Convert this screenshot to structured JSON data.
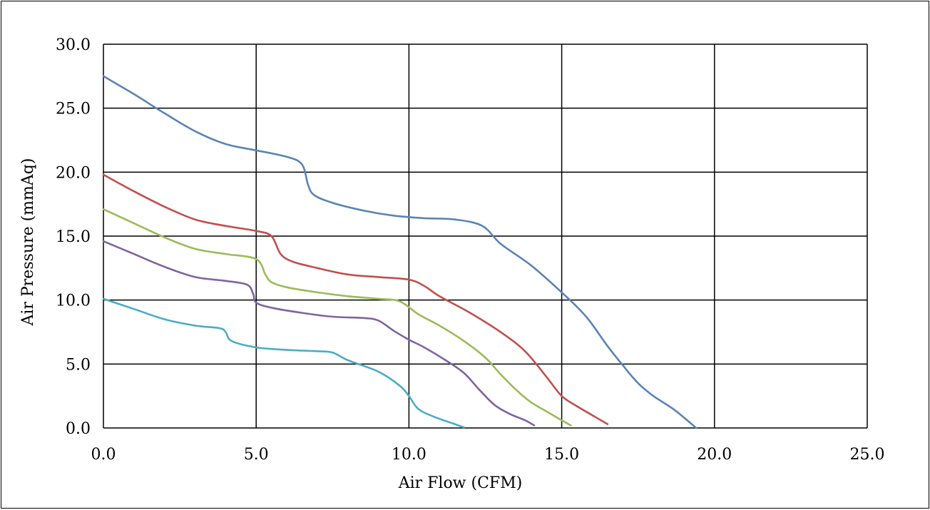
{
  "chart_data": {
    "type": "line",
    "title": "",
    "xlabel": "Air Flow (CFM)",
    "ylabel": "Air Pressure (mmAq)",
    "xlim": [
      0,
      25
    ],
    "ylim": [
      0,
      30
    ],
    "x_ticks": [
      "0.0",
      "5.0",
      "10.0",
      "15.0",
      "20.0",
      "25.0"
    ],
    "y_ticks": [
      "0.0",
      "5.0",
      "10.0",
      "15.0",
      "20.0",
      "25.0",
      "30.0"
    ],
    "grid": true,
    "legend": "none",
    "series": [
      {
        "color": "#5b84b5",
        "points": [
          [
            0,
            27.5
          ],
          [
            1,
            26.1
          ],
          [
            2,
            24.6
          ],
          [
            3,
            23.2
          ],
          [
            4,
            22.2
          ],
          [
            5,
            21.7
          ],
          [
            6,
            21.2
          ],
          [
            6.5,
            20.6
          ],
          [
            6.7,
            19.0
          ],
          [
            6.9,
            18.2
          ],
          [
            7.5,
            17.6
          ],
          [
            8.5,
            17.0
          ],
          [
            9.5,
            16.6
          ],
          [
            10.5,
            16.4
          ],
          [
            11.5,
            16.3
          ],
          [
            12.4,
            15.8
          ],
          [
            13,
            14.4
          ],
          [
            14,
            12.7
          ],
          [
            15,
            10.6
          ],
          [
            15.8,
            8.7
          ],
          [
            16.5,
            6.4
          ],
          [
            17,
            4.9
          ],
          [
            17.5,
            3.5
          ],
          [
            18,
            2.5
          ],
          [
            18.7,
            1.4
          ],
          [
            19.4,
            0
          ]
        ]
      },
      {
        "color": "#c0504d",
        "points": [
          [
            0,
            19.8
          ],
          [
            1,
            18.5
          ],
          [
            2,
            17.3
          ],
          [
            3,
            16.3
          ],
          [
            4,
            15.8
          ],
          [
            5,
            15.4
          ],
          [
            5.5,
            15.0
          ],
          [
            5.8,
            13.6
          ],
          [
            6.2,
            13.0
          ],
          [
            7,
            12.5
          ],
          [
            8,
            12.0
          ],
          [
            9,
            11.8
          ],
          [
            10,
            11.6
          ],
          [
            10.5,
            11.1
          ],
          [
            11,
            10.3
          ],
          [
            12,
            9.0
          ],
          [
            13,
            7.5
          ],
          [
            13.8,
            6.0
          ],
          [
            14.5,
            4.0
          ],
          [
            15,
            2.5
          ],
          [
            15.5,
            1.7
          ],
          [
            16,
            1.0
          ],
          [
            16.5,
            0.3
          ]
        ]
      },
      {
        "color": "#9bbb59",
        "points": [
          [
            0,
            17.1
          ],
          [
            1,
            16.0
          ],
          [
            2,
            14.9
          ],
          [
            3,
            14.0
          ],
          [
            4,
            13.6
          ],
          [
            5,
            13.2
          ],
          [
            5.3,
            12.0
          ],
          [
            5.5,
            11.4
          ],
          [
            6,
            11.0
          ],
          [
            7,
            10.6
          ],
          [
            8,
            10.3
          ],
          [
            9,
            10.1
          ],
          [
            9.7,
            9.9
          ],
          [
            10.3,
            8.9
          ],
          [
            11,
            8.0
          ],
          [
            11.8,
            6.8
          ],
          [
            12.5,
            5.5
          ],
          [
            13,
            4.2
          ],
          [
            13.5,
            3.0
          ],
          [
            14,
            2.0
          ],
          [
            14.5,
            1.3
          ],
          [
            15,
            0.6
          ],
          [
            15.3,
            0.2
          ]
        ]
      },
      {
        "color": "#8064a2",
        "points": [
          [
            0,
            14.6
          ],
          [
            1,
            13.6
          ],
          [
            2,
            12.6
          ],
          [
            3,
            11.8
          ],
          [
            4,
            11.5
          ],
          [
            4.7,
            11.2
          ],
          [
            4.9,
            10.5
          ],
          [
            5,
            9.8
          ],
          [
            5.5,
            9.4
          ],
          [
            6.5,
            9.0
          ],
          [
            7.5,
            8.7
          ],
          [
            8.5,
            8.6
          ],
          [
            9,
            8.4
          ],
          [
            9.5,
            7.6
          ],
          [
            10,
            6.9
          ],
          [
            10.5,
            6.3
          ],
          [
            11.2,
            5.3
          ],
          [
            11.8,
            4.3
          ],
          [
            12.3,
            3.0
          ],
          [
            12.8,
            1.8
          ],
          [
            13.3,
            1.1
          ],
          [
            13.8,
            0.6
          ],
          [
            14.1,
            0.2
          ]
        ]
      },
      {
        "color": "#4bacc6",
        "points": [
          [
            0,
            10.1
          ],
          [
            1,
            9.3
          ],
          [
            2,
            8.5
          ],
          [
            3,
            8.0
          ],
          [
            3.8,
            7.8
          ],
          [
            4,
            7.5
          ],
          [
            4.2,
            6.8
          ],
          [
            5,
            6.3
          ],
          [
            6,
            6.1
          ],
          [
            7,
            6.0
          ],
          [
            7.5,
            5.9
          ],
          [
            8,
            5.3
          ],
          [
            9,
            4.4
          ],
          [
            9.7,
            3.3
          ],
          [
            10,
            2.5
          ],
          [
            10.3,
            1.5
          ],
          [
            10.8,
            0.9
          ],
          [
            11.5,
            0.3
          ],
          [
            11.8,
            0.05
          ]
        ]
      }
    ]
  }
}
